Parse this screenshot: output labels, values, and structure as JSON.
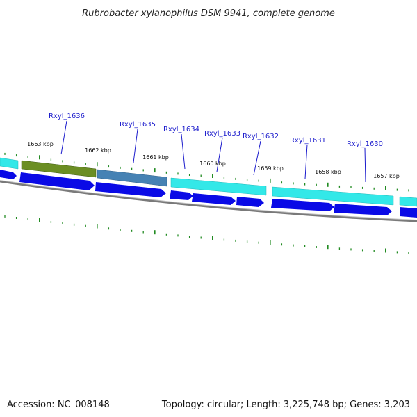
{
  "title": "Rubrobacter xylanophilus DSM 9941, complete genome",
  "footer": {
    "accession": "Accession: NC_008148",
    "summary": "Topology: circular; Length: 3,225,748 bp; Genes: 3,203"
  },
  "kbp_labels": [
    "1663 kbp",
    "1662 kbp",
    "1661 kbp",
    "1660 kbp",
    "1659 kbp",
    "1658 kbp",
    "1657 kbp"
  ],
  "gene_labels": [
    "Rxyl_1636",
    "Rxyl_1635",
    "Rxyl_1634",
    "Rxyl_1633",
    "Rxyl_1632",
    "Rxyl_1631",
    "Rxyl_1630"
  ],
  "colors": {
    "cyan_feature": "#33e8e8",
    "olive_feature": "#6b8e23",
    "steel_feature": "#4682b4",
    "blue_arrow": "#0a0ae6",
    "backbone": "#808080",
    "tick": "#228b22",
    "label_line": "#1a1acc"
  }
}
